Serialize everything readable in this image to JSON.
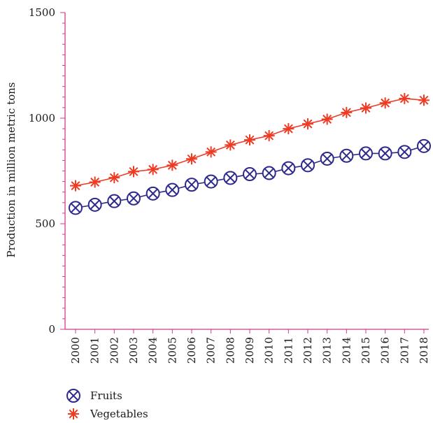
{
  "chart_data": {
    "type": "line",
    "title": "",
    "xlabel": "",
    "ylabel": "Production in million metric tons",
    "ylim": [
      0,
      1500
    ],
    "yticks": [
      0,
      500,
      1000,
      1500
    ],
    "grid": false,
    "legend_position": "bottom-left",
    "categories": [
      "2000",
      "2001",
      "2002",
      "2003",
      "2004",
      "2005",
      "2006",
      "2007",
      "2008",
      "2009",
      "2010",
      "2011",
      "2012",
      "2013",
      "2014",
      "2015",
      "2016",
      "2017",
      "2018"
    ],
    "series": [
      {
        "name": "Fruits",
        "color": "#2e2a8c",
        "marker": "circle-x",
        "values": [
          575,
          590,
          607,
          620,
          643,
          660,
          685,
          700,
          717,
          735,
          740,
          763,
          777,
          808,
          822,
          833,
          833,
          840,
          868
        ]
      },
      {
        "name": "Vegetables",
        "color": "#ee3b24",
        "marker": "asterisk",
        "values": [
          680,
          697,
          718,
          747,
          757,
          777,
          807,
          840,
          873,
          897,
          917,
          950,
          973,
          995,
          1027,
          1048,
          1072,
          1093,
          1085
        ]
      }
    ],
    "axis_color": "#d4398f"
  }
}
